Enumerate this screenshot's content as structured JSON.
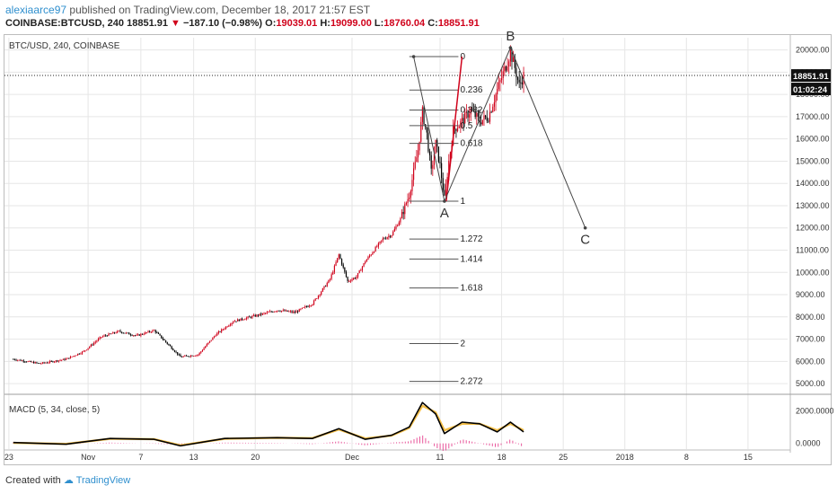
{
  "header": {
    "author": "alexiaarce97",
    "published_text": "published on TradingView.com, December 18, 2017 21:57 EST",
    "symbol_line": "COINBASE:BTCUSD, 240",
    "last_price": "18851.91",
    "change": "−187.10 (−0.98%)",
    "ohlc": {
      "o_label": "O:",
      "o": "19039.01",
      "h_label": "H:",
      "h": "19099.00",
      "l_label": "L:",
      "l": "18760.04",
      "c_label": "C:",
      "c": "18851.91"
    }
  },
  "chart_title": "BTC/USD, 240, COINBASE",
  "price_label": "18851.91",
  "countdown_label": "01:02:24",
  "macd_label": "MACD (5, 34, close, 5)",
  "footer": {
    "created_with": "Created with",
    "brand": "TradingView"
  },
  "colors": {
    "up": "#d0021b",
    "down": "#000000",
    "grid": "#e6e6e6",
    "fib": "#555555",
    "macd_line": "#000000",
    "signal_line": "#f5c04a",
    "hist": "#e8559a",
    "accent": "#2f8fce"
  },
  "chart_data": [
    {
      "type": "candlestick",
      "title": "BTC/USD, 240, COINBASE",
      "y_axis_ticks": [
        "20000.00",
        "19000.00",
        "18000.00",
        "17000.00",
        "16000.00",
        "15000.00",
        "14000.00",
        "13000.00",
        "12000.00",
        "11000.00",
        "10000.00",
        "9000.00",
        "8000.00",
        "7000.00",
        "6000.00",
        "5000.00"
      ],
      "ylim": [
        4600,
        20550
      ],
      "x_axis_ticks": [
        "23",
        "Nov",
        "7",
        "13",
        "20",
        "Dec",
        "11",
        "18",
        "25",
        "2018",
        "8",
        "15"
      ],
      "price_path": [
        {
          "d": 0,
          "p": 6100
        },
        {
          "d": 3,
          "p": 5900
        },
        {
          "d": 6,
          "p": 6100
        },
        {
          "d": 8,
          "p": 6450
        },
        {
          "d": 10,
          "p": 7100
        },
        {
          "d": 12,
          "p": 7350
        },
        {
          "d": 14,
          "p": 7150
        },
        {
          "d": 16,
          "p": 7400
        },
        {
          "d": 17,
          "p": 7000
        },
        {
          "d": 19,
          "p": 6200
        },
        {
          "d": 21,
          "p": 6300
        },
        {
          "d": 23,
          "p": 7200
        },
        {
          "d": 25,
          "p": 7800
        },
        {
          "d": 28,
          "p": 8100
        },
        {
          "d": 30,
          "p": 8300
        },
        {
          "d": 32,
          "p": 8200
        },
        {
          "d": 34,
          "p": 8600
        },
        {
          "d": 36,
          "p": 9700
        },
        {
          "d": 37,
          "p": 10800
        },
        {
          "d": 38,
          "p": 9600
        },
        {
          "d": 39,
          "p": 9800
        },
        {
          "d": 40,
          "p": 10500
        },
        {
          "d": 41,
          "p": 11000
        },
        {
          "d": 42,
          "p": 11500
        },
        {
          "d": 43,
          "p": 11700
        },
        {
          "d": 44,
          "p": 12400
        },
        {
          "d": 45,
          "p": 13500
        },
        {
          "d": 46,
          "p": 15500
        },
        {
          "d": 46.5,
          "p": 17200
        },
        {
          "d": 47,
          "p": 16200
        },
        {
          "d": 47.5,
          "p": 14500
        },
        {
          "d": 48,
          "p": 15800
        },
        {
          "d": 48.5,
          "p": 14800
        },
        {
          "d": 49,
          "p": 13300
        },
        {
          "d": 49.5,
          "p": 15000
        },
        {
          "d": 50,
          "p": 16400
        },
        {
          "d": 51,
          "p": 16800
        },
        {
          "d": 52,
          "p": 17300
        },
        {
          "d": 53,
          "p": 16800
        },
        {
          "d": 54,
          "p": 17000
        },
        {
          "d": 55,
          "p": 18200
        },
        {
          "d": 56,
          "p": 19300
        },
        {
          "d": 56.5,
          "p": 19900
        },
        {
          "d": 57,
          "p": 19200
        },
        {
          "d": 57.5,
          "p": 18400
        },
        {
          "d": 58,
          "p": 18851.91
        }
      ],
      "elliott_points": [
        {
          "label": "",
          "d": 45.5,
          "p": 19700
        },
        {
          "label": "A",
          "d": 49,
          "p": 13200
        },
        {
          "label": "B",
          "d": 56.5,
          "p": 20100
        },
        {
          "label": "C",
          "d": 65,
          "p": 12000
        }
      ],
      "fib_levels": [
        {
          "ratio": "0",
          "price": 19700
        },
        {
          "ratio": "0.236",
          "price": 18200
        },
        {
          "ratio": "0.382",
          "price": 17300
        },
        {
          "ratio": "0.5",
          "price": 16600
        },
        {
          "ratio": "0.618",
          "price": 15800
        },
        {
          "ratio": "1",
          "price": 13200
        },
        {
          "ratio": "1.272",
          "price": 11500
        },
        {
          "ratio": "1.414",
          "price": 10600
        },
        {
          "ratio": "1.618",
          "price": 9300
        },
        {
          "ratio": "2",
          "price": 6800
        },
        {
          "ratio": "2.272",
          "price": 5100
        }
      ]
    },
    {
      "type": "line",
      "title": "MACD (5, 34, close, 5)",
      "y_axis_ticks": [
        "2000.0000",
        "0.0000"
      ],
      "ylim": [
        -350,
        2950
      ],
      "series": [
        {
          "name": "MACD",
          "values": [
            {
              "d": 0,
              "v": 50
            },
            {
              "d": 6,
              "v": -50
            },
            {
              "d": 11,
              "v": 300
            },
            {
              "d": 16,
              "v": 250
            },
            {
              "d": 19,
              "v": -150
            },
            {
              "d": 24,
              "v": 300
            },
            {
              "d": 30,
              "v": 350
            },
            {
              "d": 34,
              "v": 300
            },
            {
              "d": 37,
              "v": 900
            },
            {
              "d": 40,
              "v": 250
            },
            {
              "d": 43,
              "v": 500
            },
            {
              "d": 45,
              "v": 1000
            },
            {
              "d": 46.5,
              "v": 2500
            },
            {
              "d": 48,
              "v": 1800
            },
            {
              "d": 49,
              "v": 600
            },
            {
              "d": 51,
              "v": 1300
            },
            {
              "d": 53,
              "v": 1200
            },
            {
              "d": 55,
              "v": 700
            },
            {
              "d": 56.5,
              "v": 1300
            },
            {
              "d": 58,
              "v": 700
            }
          ]
        },
        {
          "name": "Signal",
          "values": [
            {
              "d": 0,
              "v": 30
            },
            {
              "d": 6,
              "v": -30
            },
            {
              "d": 11,
              "v": 280
            },
            {
              "d": 16,
              "v": 260
            },
            {
              "d": 19,
              "v": -120
            },
            {
              "d": 24,
              "v": 280
            },
            {
              "d": 30,
              "v": 340
            },
            {
              "d": 34,
              "v": 320
            },
            {
              "d": 37,
              "v": 850
            },
            {
              "d": 40,
              "v": 300
            },
            {
              "d": 43,
              "v": 480
            },
            {
              "d": 45,
              "v": 950
            },
            {
              "d": 46.5,
              "v": 2300
            },
            {
              "d": 48,
              "v": 1900
            },
            {
              "d": 49,
              "v": 800
            },
            {
              "d": 51,
              "v": 1200
            },
            {
              "d": 53,
              "v": 1200
            },
            {
              "d": 55,
              "v": 800
            },
            {
              "d": 56.5,
              "v": 1200
            },
            {
              "d": 58,
              "v": 800
            }
          ]
        }
      ]
    }
  ]
}
